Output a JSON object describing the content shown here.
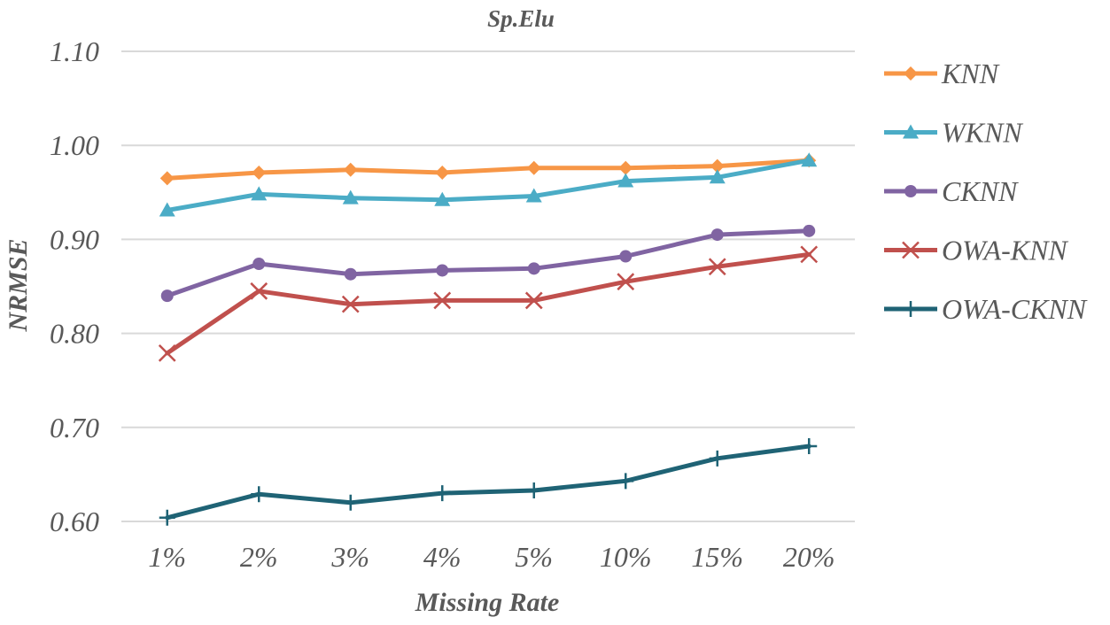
{
  "chart_data": {
    "type": "line",
    "title": "Sp.Elu",
    "xlabel": "Missing Rate",
    "ylabel": "NRMSE",
    "categories": [
      "1%",
      "2%",
      "3%",
      "4%",
      "5%",
      "10%",
      "15%",
      "20%"
    ],
    "yticks": [
      "0.60",
      "0.70",
      "0.80",
      "0.90",
      "1.00",
      "1.10"
    ],
    "ylim": [
      0.6,
      1.1
    ],
    "grid": true,
    "legend_position": "right",
    "series": [
      {
        "name": "KNN",
        "color": "#F79646",
        "marker": "diamond",
        "values": [
          0.965,
          0.971,
          0.974,
          0.971,
          0.976,
          0.976,
          0.978,
          0.984
        ]
      },
      {
        "name": "WKNN",
        "color": "#4BACC6",
        "marker": "triangle",
        "values": [
          0.931,
          0.948,
          0.944,
          0.942,
          0.946,
          0.962,
          0.966,
          0.984
        ]
      },
      {
        "name": "CKNN",
        "color": "#8064A2",
        "marker": "circle",
        "values": [
          0.84,
          0.874,
          0.863,
          0.867,
          0.869,
          0.882,
          0.905,
          0.909
        ]
      },
      {
        "name": "OWA-KNN",
        "color": "#C0504D",
        "marker": "x",
        "values": [
          0.779,
          0.845,
          0.831,
          0.835,
          0.835,
          0.855,
          0.871,
          0.884
        ]
      },
      {
        "name": "OWA-CKNN",
        "color": "#1F6375",
        "marker": "plus",
        "values": [
          0.604,
          0.629,
          0.62,
          0.63,
          0.633,
          0.643,
          0.667,
          0.68
        ]
      }
    ]
  }
}
